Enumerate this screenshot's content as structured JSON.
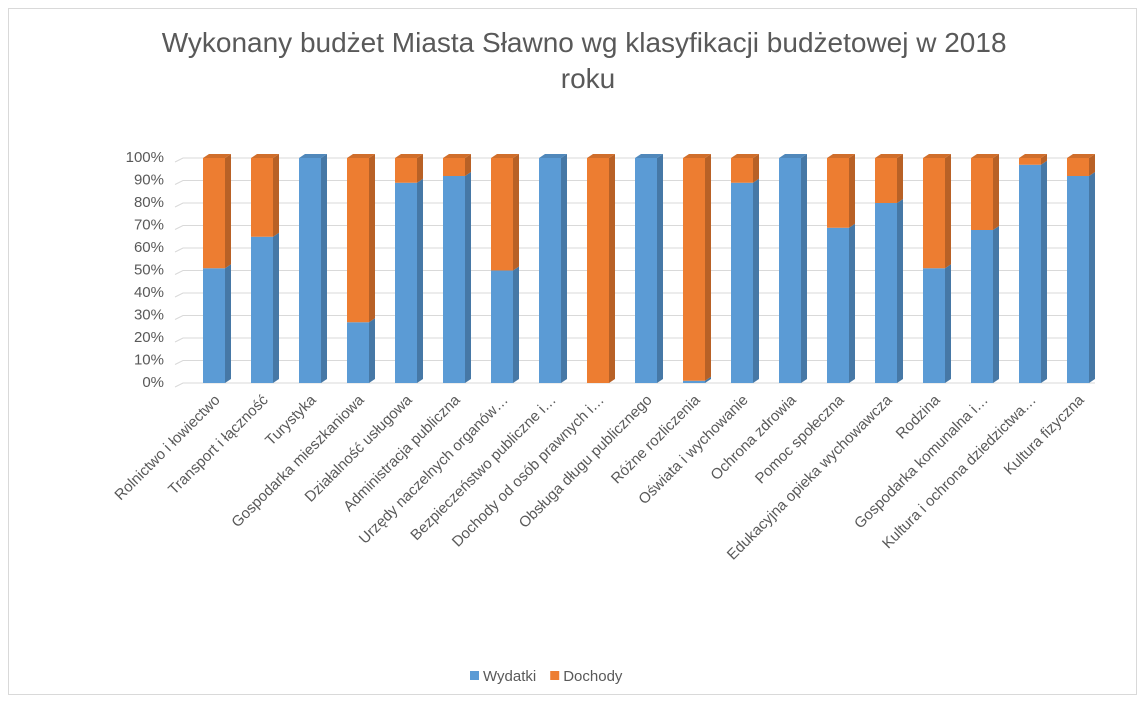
{
  "chart_data": {
    "type": "bar",
    "stacked": true,
    "title": "Wykonany budżet Miasta Sławno wg klasyfikacji budżetowej w 2018 roku",
    "categories": [
      "Rolnictwo i łowiectwo",
      "Transport i łączność",
      "Turystyka",
      "Gospodarka mieszkaniowa",
      "Działalność usługowa",
      "Administracja publiczna",
      "Urzędy naczelnych organów…",
      "Bezpieczeństwo publiczne i…",
      "Dochody od osób prawnych i…",
      "Obsługa długu publicznego",
      "Różne rozliczenia",
      "Oświata i wychowanie",
      "Ochrona zdrowia",
      "Pomoc społeczna",
      "Edukacyjna opieka wychowawcza",
      "Rodzina",
      "Gospodarka komunalna i…",
      "Kultura i ochrona dziedzictwa…",
      "Kultura fizyczna"
    ],
    "series": [
      {
        "name": "Wydatki",
        "color": "#5b9bd5",
        "values": [
          51,
          65,
          100,
          27,
          89,
          92,
          50,
          100,
          0,
          100,
          1,
          89,
          100,
          69,
          80,
          51,
          68,
          97,
          92
        ]
      },
      {
        "name": "Dochody",
        "color": "#ed7d31",
        "values": [
          49,
          35,
          0,
          73,
          11,
          8,
          50,
          0,
          100,
          0,
          99,
          11,
          0,
          31,
          20,
          49,
          32,
          3,
          8
        ]
      }
    ],
    "ylim": [
      0,
      100
    ],
    "yticks": [
      {
        "value": 0,
        "label": "0%"
      },
      {
        "value": 10,
        "label": "10%"
      },
      {
        "value": 20,
        "label": "20%"
      },
      {
        "value": 30,
        "label": "30%"
      },
      {
        "value": 40,
        "label": "40%"
      },
      {
        "value": 50,
        "label": "50%"
      },
      {
        "value": 60,
        "label": "60%"
      },
      {
        "value": 70,
        "label": "70%"
      },
      {
        "value": 80,
        "label": "80%"
      },
      {
        "value": 90,
        "label": "90%"
      },
      {
        "value": 100,
        "label": "100%"
      }
    ],
    "grid": true,
    "legend": "bottom"
  }
}
